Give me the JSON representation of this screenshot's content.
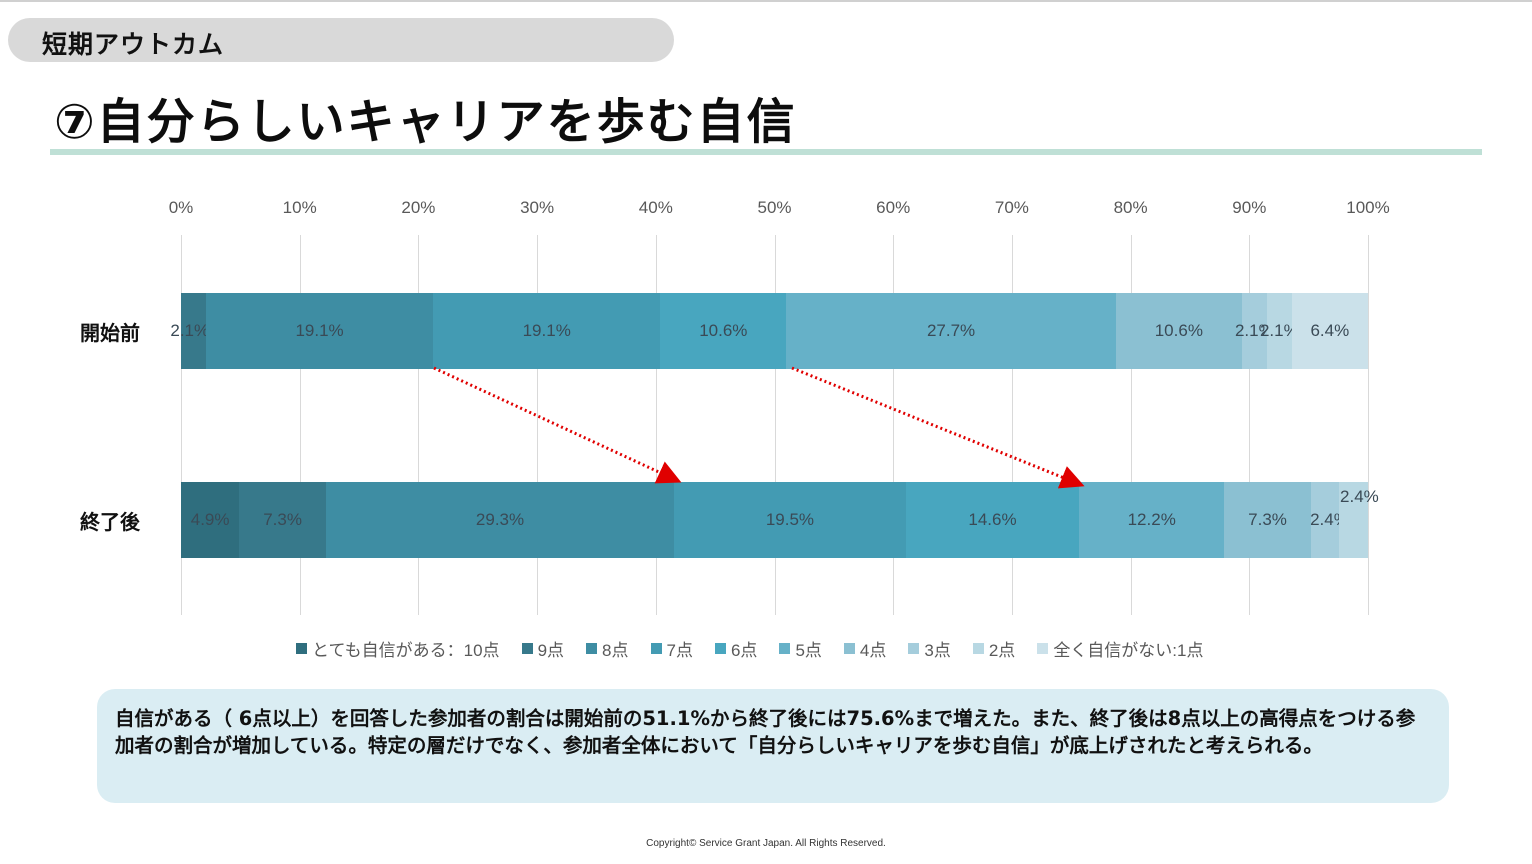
{
  "header": {
    "section_label": "短期アウトカム",
    "title": "⑦自分らしいキャリアを歩む自信"
  },
  "colors": {
    "title_rule": "#bfe0d6",
    "section_pill": "#d9d9d9",
    "summary_bg": "#daedf3",
    "arrow": "#e00000"
  },
  "chart_data": {
    "type": "bar",
    "orientation": "horizontal",
    "stacked": true,
    "normalized": true,
    "title": "⑦自分らしいキャリアを歩む自信",
    "xlabel": "",
    "ylabel": "",
    "xlim": [
      0,
      100
    ],
    "x_ticks": [
      "0%",
      "10%",
      "20%",
      "30%",
      "40%",
      "50%",
      "60%",
      "70%",
      "80%",
      "90%",
      "100%"
    ],
    "grid": true,
    "legend_position": "bottom",
    "categories": [
      "開始前",
      "終了後"
    ],
    "series": [
      {
        "name": "とても自信がある：10点",
        "color": "#2f6e7e",
        "values": [
          0,
          4.9
        ]
      },
      {
        "name": "9点",
        "color": "#37798b",
        "values": [
          2.1,
          7.3
        ]
      },
      {
        "name": "8点",
        "color": "#3e8da3",
        "values": [
          19.1,
          29.3
        ]
      },
      {
        "name": "7点",
        "color": "#439bb3",
        "values": [
          19.1,
          19.5
        ]
      },
      {
        "name": "6点",
        "color": "#48a6bf",
        "values": [
          10.6,
          14.6
        ]
      },
      {
        "name": "5点",
        "color": "#66b1c8",
        "values": [
          27.7,
          12.2
        ]
      },
      {
        "name": "4点",
        "color": "#8bc0d2",
        "values": [
          10.6,
          7.3
        ]
      },
      {
        "name": "3点",
        "color": "#a5cddc",
        "values": [
          2.1,
          2.4
        ]
      },
      {
        "name": "2点",
        "color": "#b8d8e3",
        "values": [
          2.1,
          2.4
        ]
      },
      {
        "name": "全く自信がない:1点",
        "color": "#cbe1ea",
        "values": [
          6.4,
          0
        ]
      }
    ],
    "bar_labels": {
      "開始前": [
        "2.1%",
        "19.1%",
        "19.1%",
        "10.6%",
        "27.7%",
        "10.6%",
        "2.1%",
        "2.1%",
        "6.4%"
      ],
      "終了後": [
        "4.9%",
        "7.3%",
        "29.3%",
        "19.5%",
        "14.6%",
        "12.2%",
        "7.3%",
        "2.4%",
        "2.4%"
      ]
    },
    "annotations": [
      {
        "type": "dotted-arrow",
        "from": "開始前 8点/7点 boundary (~21%)",
        "to": "終了後 8点/7点 boundary (~41.5%)"
      },
      {
        "type": "dotted-arrow",
        "from": "開始前 6点/5点 boundary (~51%)",
        "to": "終了後 6点/5点 boundary (~75.6%)"
      }
    ]
  },
  "summary": {
    "text": "自信がある（ 6点以上）を回答した参加者の割合は開始前の51.1%から終了後には75.6%まで増えた。また、終了後は8点以上の高得点をつける参加者の割合が増加している。特定の層だけでなく、参加者全体において「自分らしいキャリアを歩む自信」が底上げされたと考えられる。"
  },
  "footer": {
    "copyright": "Copyright© Service Grant Japan. All Rights Reserved."
  }
}
